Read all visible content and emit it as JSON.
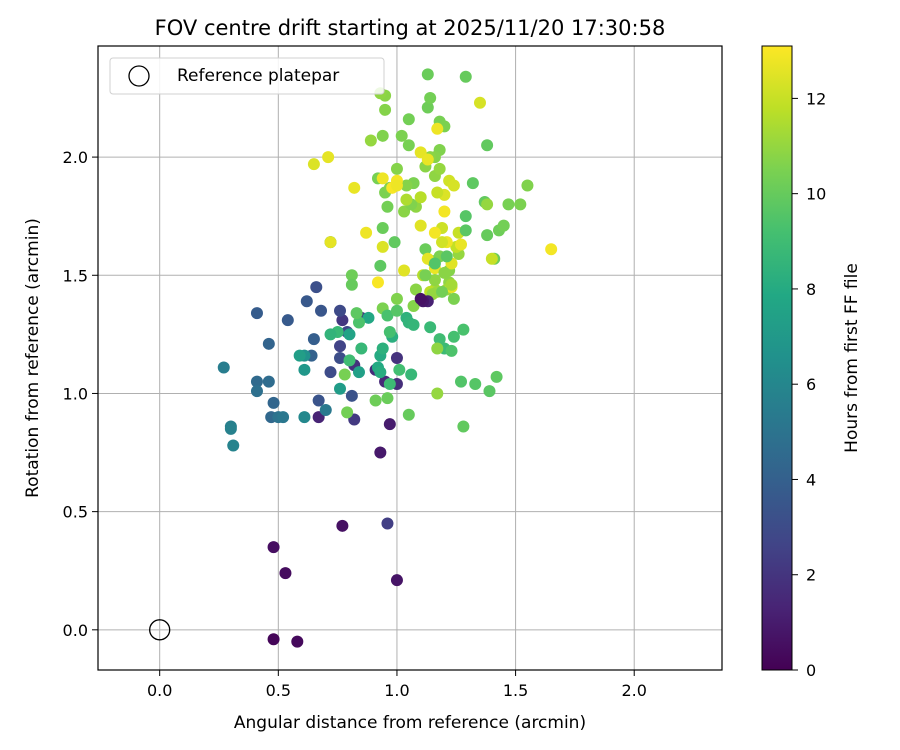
{
  "chart_data": {
    "type": "scatter",
    "title": "FOV centre drift starting at 2025/11/20 17:30:58",
    "xlabel": "Angular distance from reference (arcmin)",
    "ylabel": "Rotation from reference (arcmin)",
    "xlim": [
      -0.26,
      2.37
    ],
    "ylim": [
      -0.17,
      2.47
    ],
    "xticks": [
      0.0,
      0.5,
      1.0,
      1.5,
      2.0
    ],
    "yticks": [
      0.0,
      0.5,
      1.0,
      1.5,
      2.0
    ],
    "xtick_labels": [
      "0.0",
      "0.5",
      "1.0",
      "1.5",
      "2.0"
    ],
    "ytick_labels": [
      "0.0",
      "0.5",
      "1.0",
      "1.5",
      "2.0"
    ],
    "grid": true,
    "legend": {
      "placement": "top-left",
      "label": "Reference platepar"
    },
    "reference_point": {
      "x": 0.0,
      "y": 0.0
    },
    "colorbar": {
      "label": "Hours from first FF file",
      "colormap": "viridis",
      "range": [
        0,
        13.1
      ],
      "ticks": [
        0,
        2,
        4,
        6,
        8,
        10,
        12
      ],
      "tick_labels": [
        "0",
        "2",
        "4",
        "6",
        "8",
        "10",
        "12"
      ]
    },
    "points": [
      [
        0.48,
        -0.04,
        0.2
      ],
      [
        0.58,
        -0.05,
        0.3
      ],
      [
        0.53,
        0.24,
        0.4
      ],
      [
        0.48,
        0.35,
        0.5
      ],
      [
        0.77,
        0.44,
        0.6
      ],
      [
        1.0,
        0.21,
        0.7
      ],
      [
        0.93,
        0.75,
        0.9
      ],
      [
        0.97,
        0.87,
        1.0
      ],
      [
        0.67,
        0.9,
        1.3
      ],
      [
        0.95,
        1.05,
        1.5
      ],
      [
        0.91,
        1.1,
        1.6
      ],
      [
        1.0,
        1.04,
        1.7
      ],
      [
        0.82,
        1.12,
        1.8
      ],
      [
        1.0,
        1.15,
        1.9
      ],
      [
        0.85,
        1.32,
        2.0
      ],
      [
        0.77,
        1.31,
        2.1
      ],
      [
        0.82,
        0.89,
        2.2
      ],
      [
        0.96,
        0.45,
        2.4
      ],
      [
        0.76,
        1.2,
        2.6
      ],
      [
        0.79,
        1.26,
        2.8
      ],
      [
        0.76,
        1.35,
        2.9
      ],
      [
        0.72,
        1.09,
        3.0
      ],
      [
        0.76,
        1.15,
        3.1
      ],
      [
        0.66,
        1.45,
        3.2
      ],
      [
        0.81,
        0.99,
        3.3
      ],
      [
        0.67,
        0.97,
        3.4
      ],
      [
        0.68,
        1.35,
        3.5
      ],
      [
        0.62,
        1.39,
        3.6
      ],
      [
        0.54,
        1.31,
        3.7
      ],
      [
        0.41,
        1.34,
        3.8
      ],
      [
        0.65,
        1.23,
        3.9
      ],
      [
        0.64,
        1.16,
        4.1
      ],
      [
        0.46,
        1.21,
        4.2
      ],
      [
        0.48,
        0.96,
        4.3
      ],
      [
        0.47,
        0.9,
        4.4
      ],
      [
        0.41,
        1.05,
        4.5
      ],
      [
        0.46,
        1.05,
        4.6
      ],
      [
        0.41,
        1.01,
        4.8
      ],
      [
        0.5,
        0.9,
        5.0
      ],
      [
        0.52,
        0.9,
        5.2
      ],
      [
        0.7,
        0.93,
        5.3
      ],
      [
        0.27,
        1.11,
        5.5
      ],
      [
        0.3,
        0.86,
        5.6
      ],
      [
        0.3,
        0.85,
        5.7
      ],
      [
        0.31,
        0.78,
        5.8
      ],
      [
        0.61,
        0.9,
        6.1
      ],
      [
        0.61,
        1.16,
        6.6
      ],
      [
        0.61,
        1.1,
        6.9
      ],
      [
        0.72,
        1.64,
        7.0
      ],
      [
        0.76,
        1.02,
        7.2
      ],
      [
        0.84,
        1.09,
        7.4
      ],
      [
        0.8,
        1.25,
        7.6
      ],
      [
        0.88,
        1.32,
        7.8
      ],
      [
        0.92,
        1.11,
        7.9
      ],
      [
        0.93,
        1.16,
        8.0
      ],
      [
        0.93,
        1.09,
        8.1
      ],
      [
        0.98,
        1.24,
        8.2
      ],
      [
        0.94,
        1.19,
        8.3
      ],
      [
        1.04,
        1.32,
        8.4
      ],
      [
        1.05,
        1.3,
        8.5
      ],
      [
        1.07,
        1.29,
        8.6
      ],
      [
        1.06,
        1.08,
        8.7
      ],
      [
        1.14,
        1.28,
        8.8
      ],
      [
        1.2,
        1.19,
        8.9
      ],
      [
        1.18,
        1.23,
        9.0
      ],
      [
        1.24,
        1.24,
        9.2
      ],
      [
        1.28,
        1.27,
        9.3
      ],
      [
        1.23,
        1.18,
        9.4
      ],
      [
        1.27,
        1.05,
        9.5
      ],
      [
        1.33,
        1.04,
        9.6
      ],
      [
        1.39,
        1.01,
        9.7
      ],
      [
        1.42,
        1.07,
        9.8
      ],
      [
        1.28,
        0.86,
        9.9
      ],
      [
        1.05,
        0.91,
        10.0
      ],
      [
        0.96,
        0.98,
        10.1
      ],
      [
        0.91,
        0.97,
        10.2
      ],
      [
        0.79,
        0.92,
        10.3
      ],
      [
        0.78,
        1.08,
        10.4
      ],
      [
        0.94,
        1.36,
        10.5
      ],
      [
        1.0,
        1.4,
        10.6
      ],
      [
        1.07,
        1.37,
        10.7
      ],
      [
        1.08,
        1.44,
        10.8
      ],
      [
        1.17,
        1.19,
        10.9
      ],
      [
        1.17,
        1.0,
        11.0
      ],
      [
        0.81,
        1.5,
        10.2
      ],
      [
        0.81,
        1.46,
        10.0
      ],
      [
        0.93,
        1.54,
        9.8
      ],
      [
        0.99,
        1.64,
        9.9
      ],
      [
        0.94,
        1.7,
        10.1
      ],
      [
        0.96,
        1.79,
        10.3
      ],
      [
        0.92,
        1.91,
        10.4
      ],
      [
        0.95,
        1.85,
        10.5
      ],
      [
        0.97,
        1.87,
        10.6
      ],
      [
        1.0,
        1.95,
        10.7
      ],
      [
        1.03,
        1.77,
        10.8
      ],
      [
        1.08,
        1.79,
        10.9
      ],
      [
        1.07,
        1.89,
        10.5
      ],
      [
        1.06,
        1.8,
        10.6
      ],
      [
        1.04,
        1.88,
        10.7
      ],
      [
        1.12,
        1.96,
        10.8
      ],
      [
        1.16,
        1.92,
        10.9
      ],
      [
        1.18,
        1.95,
        11.0
      ],
      [
        1.12,
        1.61,
        10.1
      ],
      [
        1.15,
        1.56,
        10.3
      ],
      [
        1.18,
        1.58,
        10.5
      ],
      [
        1.22,
        1.52,
        10.7
      ],
      [
        1.22,
        1.47,
        10.9
      ],
      [
        1.26,
        1.59,
        11.0
      ],
      [
        1.21,
        1.44,
        11.2
      ],
      [
        1.16,
        1.44,
        11.4
      ],
      [
        1.11,
        1.5,
        11.6
      ],
      [
        1.14,
        1.43,
        11.8
      ],
      [
        1.25,
        1.62,
        11.9
      ],
      [
        1.26,
        1.68,
        12.0
      ],
      [
        1.29,
        1.75,
        9.6
      ],
      [
        1.29,
        1.69,
        9.7
      ],
      [
        1.32,
        1.89,
        9.8
      ],
      [
        1.37,
        1.81,
        9.9
      ],
      [
        1.38,
        1.67,
        10.0
      ],
      [
        1.41,
        1.57,
        10.1
      ],
      [
        1.43,
        1.69,
        10.2
      ],
      [
        1.45,
        1.71,
        10.3
      ],
      [
        1.47,
        1.8,
        10.4
      ],
      [
        1.52,
        1.8,
        10.5
      ],
      [
        1.55,
        1.88,
        10.6
      ],
      [
        1.38,
        1.8,
        11.0
      ],
      [
        1.38,
        2.05,
        9.9
      ],
      [
        1.29,
        2.34,
        10.0
      ],
      [
        1.13,
        2.35,
        10.1
      ],
      [
        1.13,
        2.21,
        10.2
      ],
      [
        1.14,
        2.25,
        10.3
      ],
      [
        1.18,
        2.15,
        10.4
      ],
      [
        1.2,
        2.13,
        10.5
      ],
      [
        1.18,
        2.03,
        10.6
      ],
      [
        1.16,
        2.0,
        10.7
      ],
      [
        1.14,
        2.0,
        10.8
      ],
      [
        1.05,
        2.16,
        10.3
      ],
      [
        1.05,
        2.05,
        10.4
      ],
      [
        1.02,
        2.09,
        10.5
      ],
      [
        0.94,
        2.09,
        10.6
      ],
      [
        0.95,
        2.2,
        10.7
      ],
      [
        0.95,
        2.26,
        10.8
      ],
      [
        0.93,
        2.27,
        10.9
      ],
      [
        0.89,
        2.07,
        11.0
      ],
      [
        1.1,
        2.02,
        12.6
      ],
      [
        1.13,
        1.99,
        12.7
      ],
      [
        1.17,
        2.12,
        12.8
      ],
      [
        1.35,
        2.23,
        12.3
      ],
      [
        0.65,
        1.97,
        12.4
      ],
      [
        0.71,
        2.0,
        12.6
      ],
      [
        0.82,
        1.87,
        12.7
      ],
      [
        0.94,
        1.91,
        12.8
      ],
      [
        1.0,
        1.9,
        12.9
      ],
      [
        0.98,
        1.87,
        13.0
      ],
      [
        0.87,
        1.68,
        12.8
      ],
      [
        0.92,
        1.47,
        13.0
      ],
      [
        0.94,
        1.62,
        12.4
      ],
      [
        1.03,
        1.52,
        12.5
      ],
      [
        1.13,
        1.57,
        12.6
      ],
      [
        1.16,
        1.53,
        12.7
      ],
      [
        1.21,
        1.64,
        12.8
      ],
      [
        1.2,
        1.77,
        12.9
      ],
      [
        1.22,
        1.9,
        12.2
      ],
      [
        1.24,
        1.88,
        12.3
      ],
      [
        1.2,
        1.84,
        12.4
      ],
      [
        1.23,
        1.55,
        12.5
      ],
      [
        1.23,
        1.45,
        12.6
      ],
      [
        1.27,
        1.63,
        12.7
      ],
      [
        1.17,
        1.85,
        12.0
      ],
      [
        1.19,
        1.7,
        12.1
      ],
      [
        1.19,
        1.64,
        12.2
      ],
      [
        1.4,
        1.57,
        12.0
      ],
      [
        1.65,
        1.61,
        12.9
      ],
      [
        0.72,
        1.64,
        12.6
      ],
      [
        1.1,
        1.71,
        12.5
      ],
      [
        1.0,
        1.88,
        12.8
      ],
      [
        1.16,
        1.68,
        12.9
      ],
      [
        1.04,
        1.82,
        11.5
      ],
      [
        1.1,
        1.83,
        11.7
      ],
      [
        1.23,
        1.46,
        11.3
      ],
      [
        1.17,
        1.43,
        11.1
      ],
      [
        1.15,
        1.42,
        11.0
      ],
      [
        1.16,
        1.48,
        10.9
      ],
      [
        1.13,
        1.39,
        1.2
      ],
      [
        1.11,
        1.39,
        0.8
      ],
      [
        1.1,
        1.4,
        0.6
      ],
      [
        1.19,
        1.43,
        10.3
      ],
      [
        1.24,
        1.4,
        10.5
      ],
      [
        1.16,
        1.55,
        9.5
      ],
      [
        1.21,
        1.58,
        9.7
      ],
      [
        1.12,
        1.5,
        10.4
      ],
      [
        1.2,
        1.51,
        10.8
      ],
      [
        0.75,
        1.26,
        8.8
      ],
      [
        0.84,
        1.3,
        9.4
      ],
      [
        0.97,
        1.26,
        9.2
      ],
      [
        0.96,
        1.33,
        9.3
      ],
      [
        1.0,
        1.35,
        9.6
      ],
      [
        0.83,
        1.34,
        9.8
      ],
      [
        0.8,
        1.14,
        9.0
      ],
      [
        0.85,
        1.19,
        8.7
      ],
      [
        0.97,
        1.04,
        8.9
      ],
      [
        1.01,
        1.1,
        9.1
      ],
      [
        0.72,
        1.25,
        8.5
      ],
      [
        0.59,
        1.16,
        7.3
      ]
    ]
  }
}
